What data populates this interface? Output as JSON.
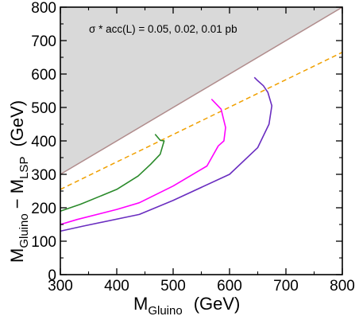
{
  "chart_data": {
    "type": "line",
    "annotation": "σ * acc(L) = 0.05,  0.02,  0.01 pb",
    "xlabel": {
      "main": "M",
      "sub": "Gluino",
      "unit": "(GeV)"
    },
    "ylabel": {
      "main": "M",
      "sub1": "Gluino",
      "minus": " − M",
      "sub2": "LSP",
      "unit": "(GeV)"
    },
    "xlim": [
      300,
      800
    ],
    "ylim": [
      0,
      800
    ],
    "x_ticks": [
      300,
      400,
      500,
      600,
      700,
      800
    ],
    "y_ticks": [
      0,
      100,
      200,
      300,
      400,
      500,
      600,
      700,
      800
    ],
    "grid": false,
    "excluded_region": {
      "boundary": [
        [
          300,
          300
        ],
        [
          800,
          800
        ]
      ],
      "color": "#d9d9d9",
      "line_color": "#b08c8c"
    },
    "reference_line": {
      "points": [
        [
          300,
          255
        ],
        [
          800,
          665
        ]
      ],
      "color": "#f0a000",
      "style": "dashed"
    },
    "series": [
      {
        "color": "#2a8a2a",
        "points": [
          [
            300,
            190
          ],
          [
            335,
            210
          ],
          [
            400,
            255
          ],
          [
            438,
            295
          ],
          [
            460,
            330
          ],
          [
            477,
            360
          ],
          [
            484,
            400
          ],
          [
            477,
            402
          ],
          [
            468,
            420
          ]
        ]
      },
      {
        "color": "#ff00ff",
        "points": [
          [
            300,
            150
          ],
          [
            330,
            165
          ],
          [
            400,
            195
          ],
          [
            440,
            215
          ],
          [
            500,
            265
          ],
          [
            560,
            325
          ],
          [
            580,
            385
          ],
          [
            590,
            400
          ],
          [
            593,
            440
          ],
          [
            585,
            495
          ],
          [
            568,
            525
          ]
        ]
      },
      {
        "color": "#6a2dc0",
        "points": [
          [
            300,
            130
          ],
          [
            340,
            145
          ],
          [
            440,
            180
          ],
          [
            500,
            222
          ],
          [
            600,
            300
          ],
          [
            650,
            380
          ],
          [
            670,
            450
          ],
          [
            675,
            505
          ],
          [
            668,
            545
          ],
          [
            660,
            565
          ],
          [
            650,
            580
          ],
          [
            644,
            590
          ]
        ]
      }
    ]
  }
}
